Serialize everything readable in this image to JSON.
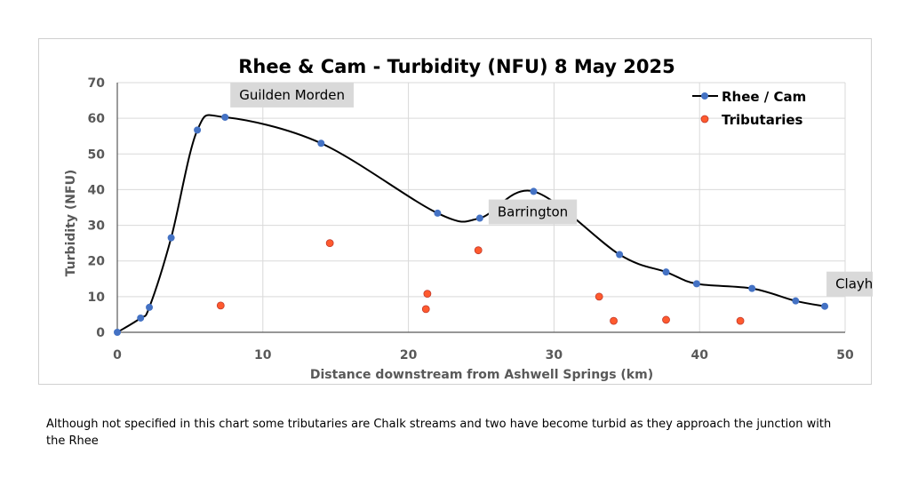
{
  "chart_data": {
    "type": "scatter",
    "title": "Rhee & Cam - Turbidity (NFU) 8 May 2025",
    "xlabel": "Distance downstream from Ashwell Springs (km)",
    "ylabel": "Turbidity (NFU)",
    "xlim": [
      0,
      50
    ],
    "ylim": [
      0,
      70
    ],
    "x_ticks": [
      0,
      10,
      20,
      30,
      40,
      50
    ],
    "y_ticks": [
      0,
      10,
      20,
      30,
      40,
      50,
      60,
      70
    ],
    "grid": "vertical and horizontal major gridlines",
    "legend_position": "top-right",
    "series": [
      {
        "name": "Rhee / Cam",
        "style": "smoothed line with markers",
        "color": "#4472c4",
        "line_color": "#000000",
        "x": [
          0,
          1.6,
          2.2,
          3.7,
          5.5,
          7.4,
          14.0,
          22.0,
          24.9,
          28.6,
          34.5,
          37.7,
          39.8,
          43.6,
          46.6,
          48.6
        ],
        "y": [
          0,
          4,
          7,
          26.5,
          56.7,
          60.3,
          53,
          33.4,
          32,
          39.5,
          21.8,
          16.9,
          13.6,
          12.3,
          8.8,
          7.3
        ]
      },
      {
        "name": "Tributaries",
        "style": "markers only",
        "color": "#ff5a2e",
        "x": [
          7.1,
          14.6,
          21.2,
          21.3,
          24.8,
          33.1,
          34.1,
          37.7,
          42.8
        ],
        "y": [
          7.5,
          25,
          6.5,
          10.8,
          23,
          10,
          3.2,
          3.5,
          3.2
        ]
      }
    ],
    "annotations": [
      {
        "text": "Guilden Morden",
        "x": 7.4,
        "y": 60.3
      },
      {
        "text": "Barrington",
        "x": 24.9,
        "y": 32
      },
      {
        "text": "Clayhithe",
        "x": 48.6,
        "y": 7.3
      }
    ]
  },
  "footnote": "Although not specified in this chart some tributaries are Chalk streams and two have become turbid as they approach the junction with the Rhee"
}
